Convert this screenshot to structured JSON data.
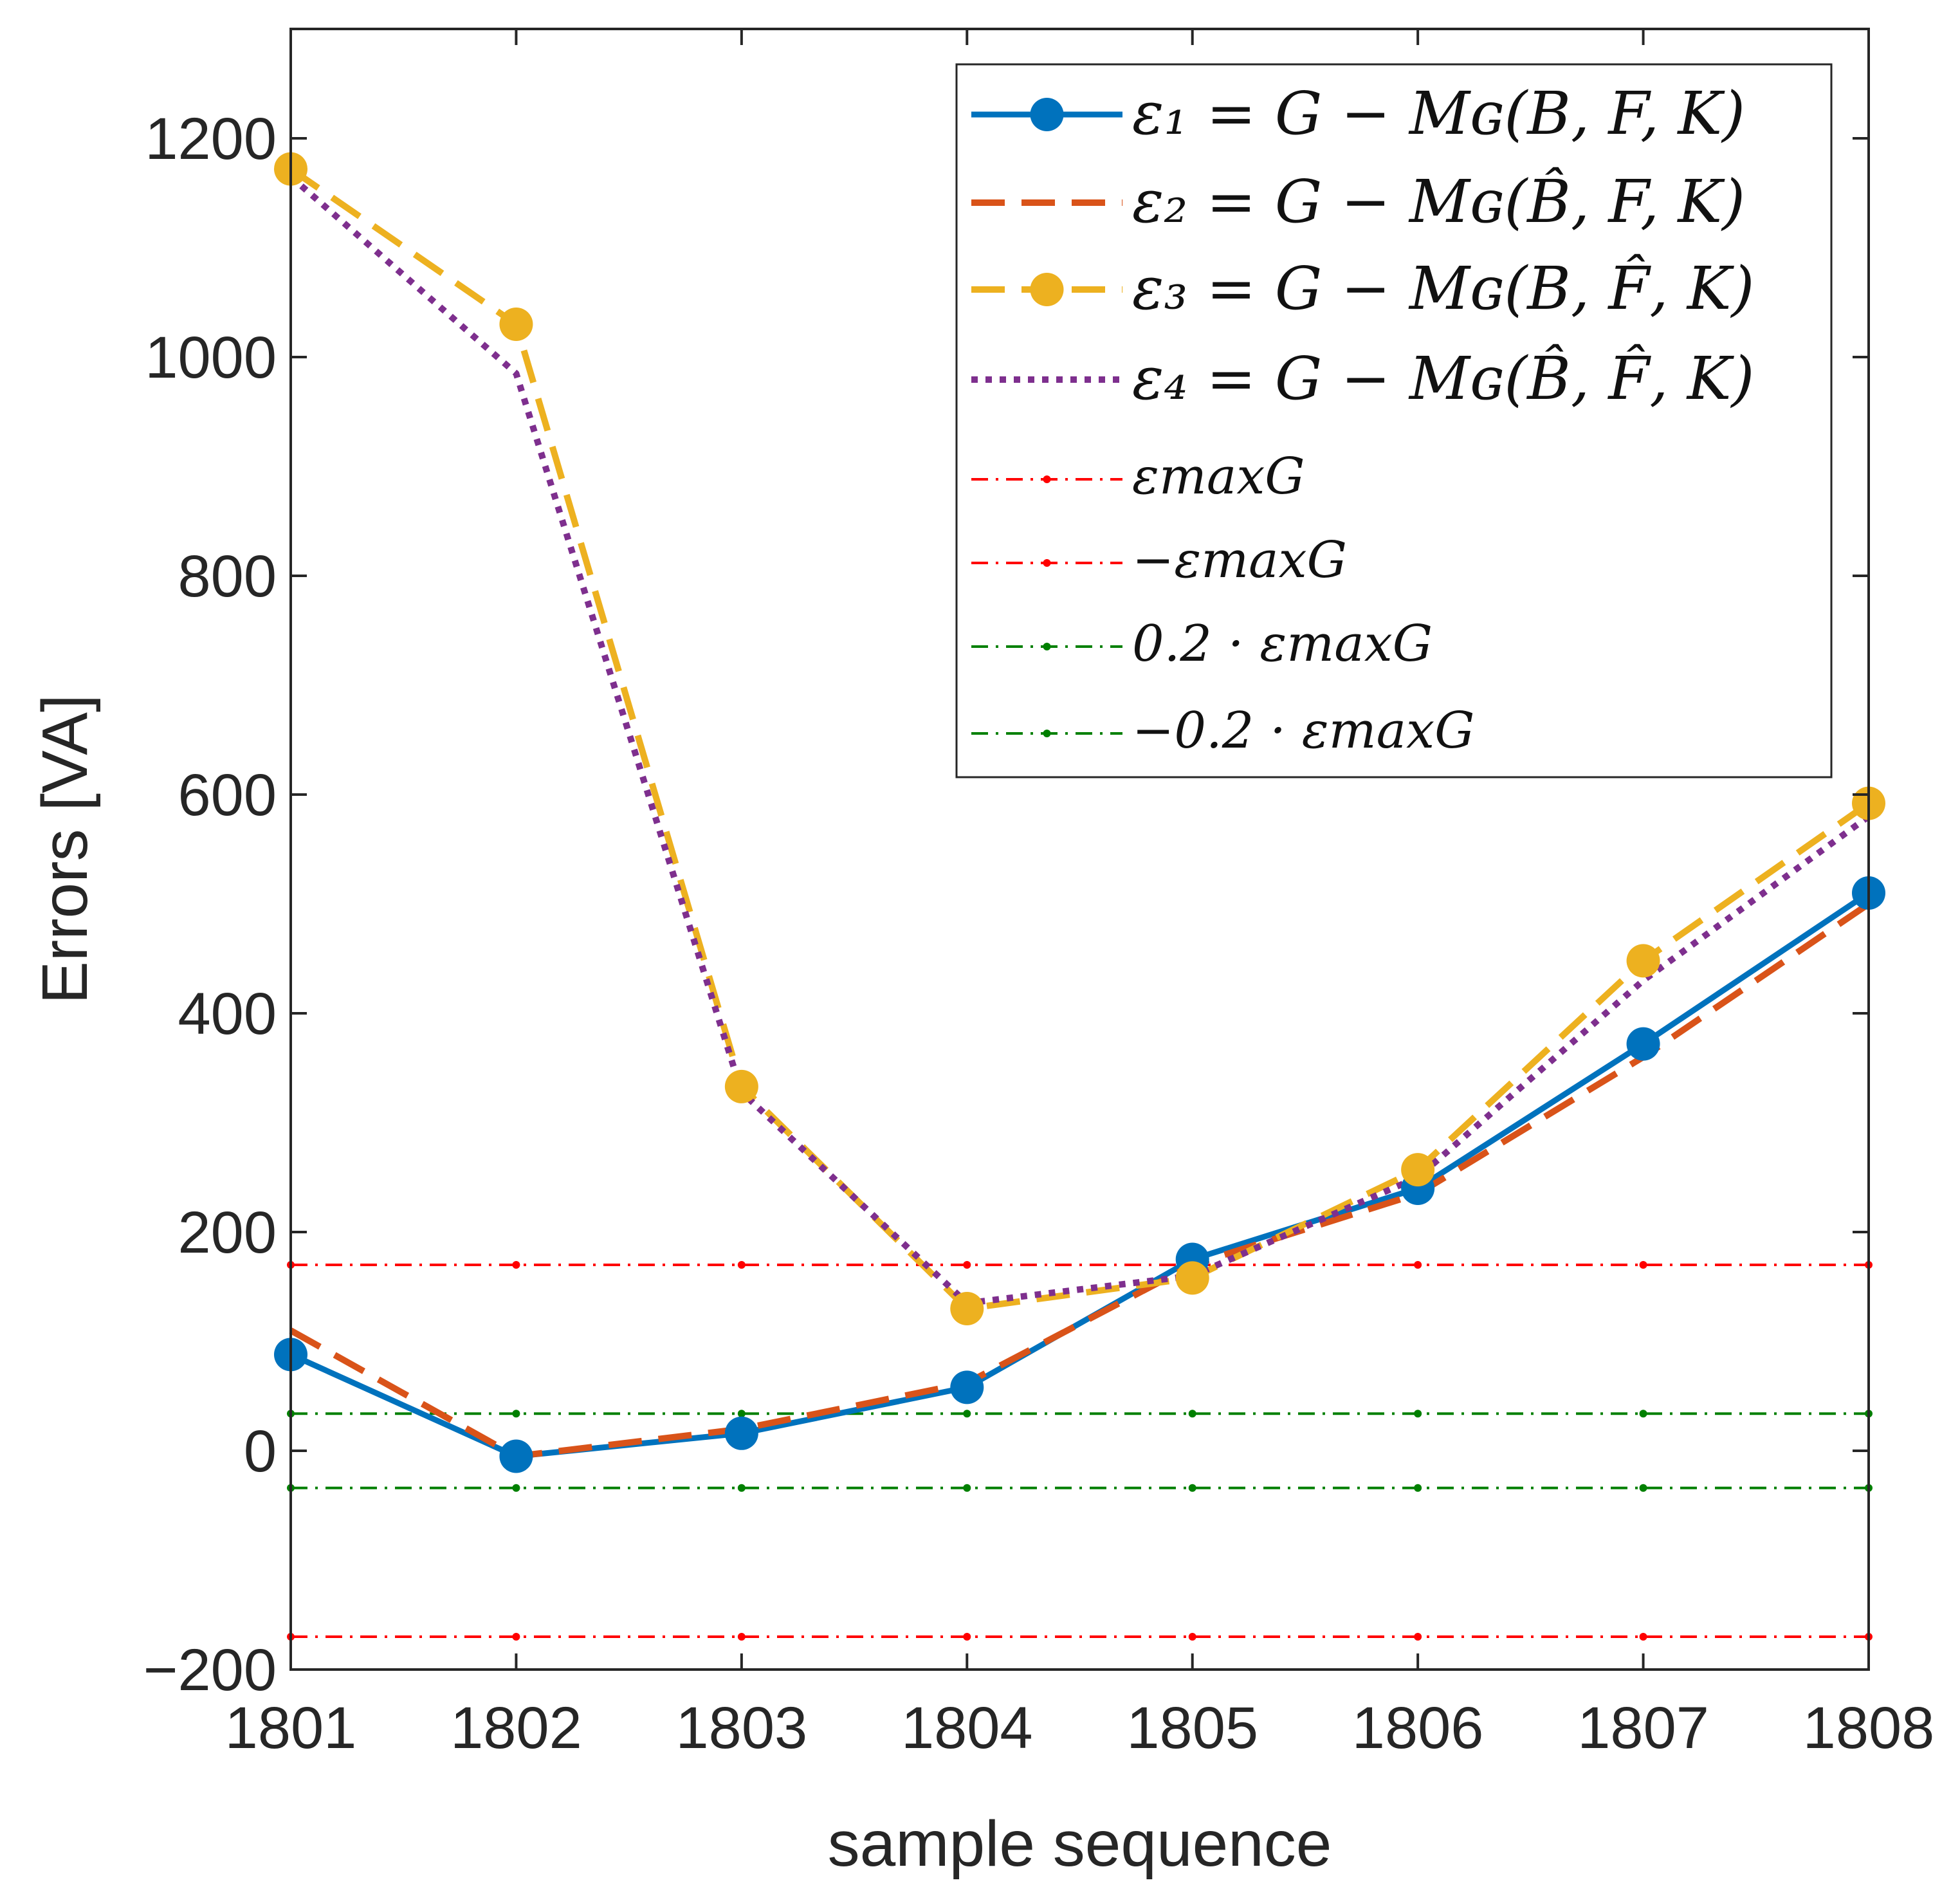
{
  "chart_data": {
    "type": "line",
    "title": "",
    "xlabel": "sample sequence",
    "ylabel": "Errors  [VA]",
    "x": [
      1801,
      1802,
      1803,
      1804,
      1805,
      1806,
      1807,
      1808
    ],
    "xlim": [
      1801,
      1808
    ],
    "ylim": [
      -200,
      1300
    ],
    "xticks": [
      1801,
      1802,
      1803,
      1804,
      1805,
      1806,
      1807,
      1808
    ],
    "yticks": [
      -200,
      0,
      200,
      400,
      600,
      800,
      1000,
      1200
    ],
    "xtick_labels": [
      "1801",
      "1802",
      "1803",
      "1804",
      "1805",
      "1806",
      "1807",
      "1808"
    ],
    "ytick_labels": [
      "−200",
      "0",
      "200",
      "400",
      "600",
      "800",
      "1000",
      "1200"
    ],
    "grid": false,
    "legend_position": "top-right",
    "series": [
      {
        "name": "ε₁ = G − M_G(B, F, K)",
        "label": "ε₁ = G − Mɢ(B, F, K)",
        "values": [
          88,
          -5,
          16,
          58,
          175,
          240,
          372,
          510
        ],
        "color": "#0072BD",
        "style": "solid",
        "marker": "circle"
      },
      {
        "name": "ε₂ = G − M_G(B̂, F, K)",
        "label": "ε₂ = G − Mɢ(B̂, F, K)",
        "values": [
          110,
          -5,
          20,
          62,
          170,
          235,
          360,
          500
        ],
        "color": "#D95319",
        "style": "dashed",
        "marker": "none"
      },
      {
        "name": "ε₃ = G − M_G(B, F̂, K)",
        "label": "ε₃ = G − Mɢ(B, F̂, K)",
        "values": [
          1172,
          1030,
          333,
          130,
          158,
          257,
          448,
          592
        ],
        "color": "#EDB120",
        "style": "dashed",
        "marker": "circle"
      },
      {
        "name": "ε₄ = G − M_G(B̂, F̂, K)",
        "label": "ε₄ = G − Mɢ(B̂, F̂, K)",
        "values": [
          1165,
          985,
          328,
          135,
          160,
          250,
          430,
          580
        ],
        "color": "#7E2F8E",
        "style": "dotted",
        "marker": "none"
      }
    ],
    "reference_lines": [
      {
        "name": "ε_maxG",
        "label": "εmaxG",
        "value": 170,
        "color": "#FF0000",
        "style": "dashdot"
      },
      {
        "name": "−ε_maxG",
        "label": "−εmaxG",
        "value": -170,
        "color": "#FF0000",
        "style": "dashdot"
      },
      {
        "name": "0.2 · ε_maxG",
        "label": "0.2 · εmaxG",
        "value": 34,
        "color": "#008000",
        "style": "dashdot"
      },
      {
        "name": "−0.2 · ε_maxG",
        "label": "−0.2 · εmaxG",
        "value": -34,
        "color": "#008000",
        "style": "dashdot"
      }
    ]
  }
}
